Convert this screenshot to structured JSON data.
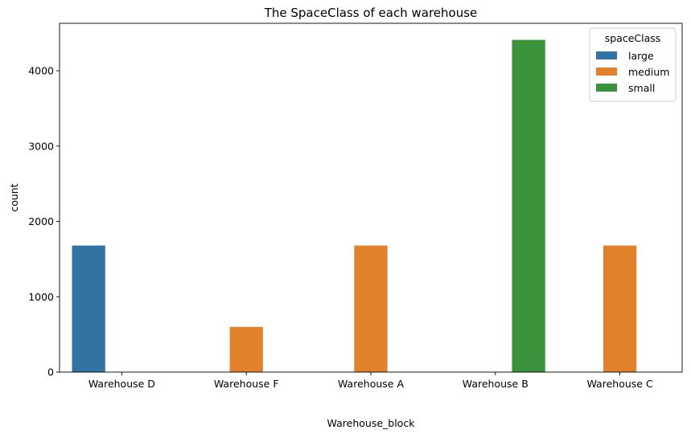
{
  "chart_data": {
    "type": "bar",
    "title": "The SpaceClass of each warehouse",
    "xlabel": "Warehouse_block",
    "ylabel": "count",
    "categories": [
      "Warehouse D",
      "Warehouse F",
      "Warehouse A",
      "Warehouse B",
      "Warehouse C"
    ],
    "series": [
      {
        "name": "large",
        "color": "#3274a1",
        "values": [
          1680,
          0,
          0,
          0,
          0
        ]
      },
      {
        "name": "medium",
        "color": "#e1812c",
        "values": [
          0,
          600,
          1680,
          0,
          1680
        ]
      },
      {
        "name": "small",
        "color": "#3a923a",
        "values": [
          0,
          0,
          0,
          4410,
          0
        ]
      }
    ],
    "ylim": [
      0,
      4630
    ],
    "yticks": [
      0,
      1000,
      2000,
      3000,
      4000
    ],
    "grid": false,
    "legend": {
      "title": "spaceClass",
      "placement": "top-right"
    }
  }
}
